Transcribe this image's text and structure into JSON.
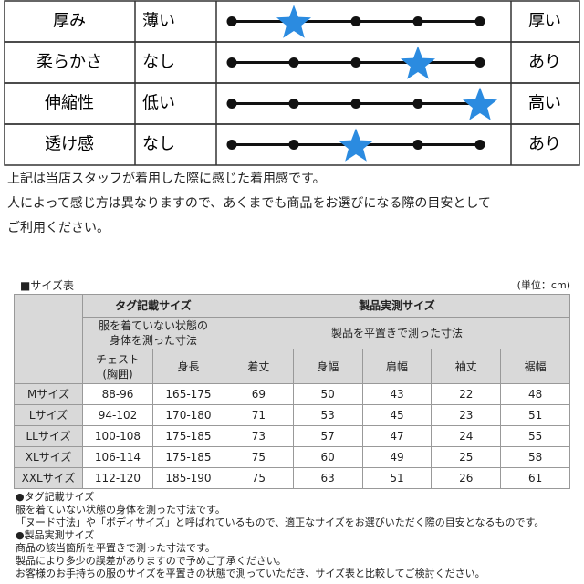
{
  "ratings": [
    {
      "label": "厚み",
      "low": "薄い",
      "high": "厚い",
      "level": 2
    },
    {
      "label": "柔らかさ",
      "low": "なし",
      "high": "あり",
      "level": 4
    },
    {
      "label": "伸縮性",
      "low": "低い",
      "high": "高い",
      "level": 5
    },
    {
      "label": "透け感",
      "low": "なし",
      "high": "あり",
      "level": 3
    }
  ],
  "notes": [
    "上記は当店スタッフが着用した際に感じた着用感です。",
    "人によって感じ方は異なりますので、あくまでも商品をお選びになる際の目安として",
    "ご利用ください。"
  ],
  "size_table": {
    "title": "■サイズ表",
    "unit": "(単位：cm)",
    "group_headers": [
      "タグ記載サイズ",
      "製品実測サイズ"
    ],
    "group_notes": [
      "服を着ていない状態の\n身体を測った寸法",
      "製品を平置きで測った寸法"
    ],
    "columns": [
      "チェスト\n(胸囲)",
      "身長",
      "着丈",
      "身幅",
      "肩幅",
      "袖丈",
      "裾幅"
    ],
    "rows": [
      [
        "Mサイズ",
        "88-96",
        "165-175",
        69,
        50,
        43,
        22,
        48
      ],
      [
        "Lサイズ",
        "94-102",
        "170-180",
        71,
        53,
        45,
        23,
        51
      ],
      [
        "LLサイズ",
        "100-108",
        "175-185",
        73,
        57,
        47,
        24,
        55
      ],
      [
        "XLサイズ",
        "106-114",
        "175-185",
        75,
        60,
        49,
        25,
        58
      ],
      [
        "XXLサイズ",
        "112-120",
        "185-190",
        75,
        63,
        51,
        26,
        61
      ]
    ]
  },
  "footnotes": [
    "●タグ記載サイズ",
    "服を着ていない状態の身体を測った寸法です。",
    "「ヌード寸法」や「ボディサイズ」と呼ばれているもので、適正なサイズをお選びいただく際の目安となるものです。",
    "●製品実測サイズ",
    "商品の該当箇所を平置きで測った寸法です。",
    "製品により多少の誤差がありますので予めご了承ください。",
    "お客様のお手持ちの服のサイズを平置きの状態で測っていただき、サイズ表と比較してご検討ください。"
  ]
}
